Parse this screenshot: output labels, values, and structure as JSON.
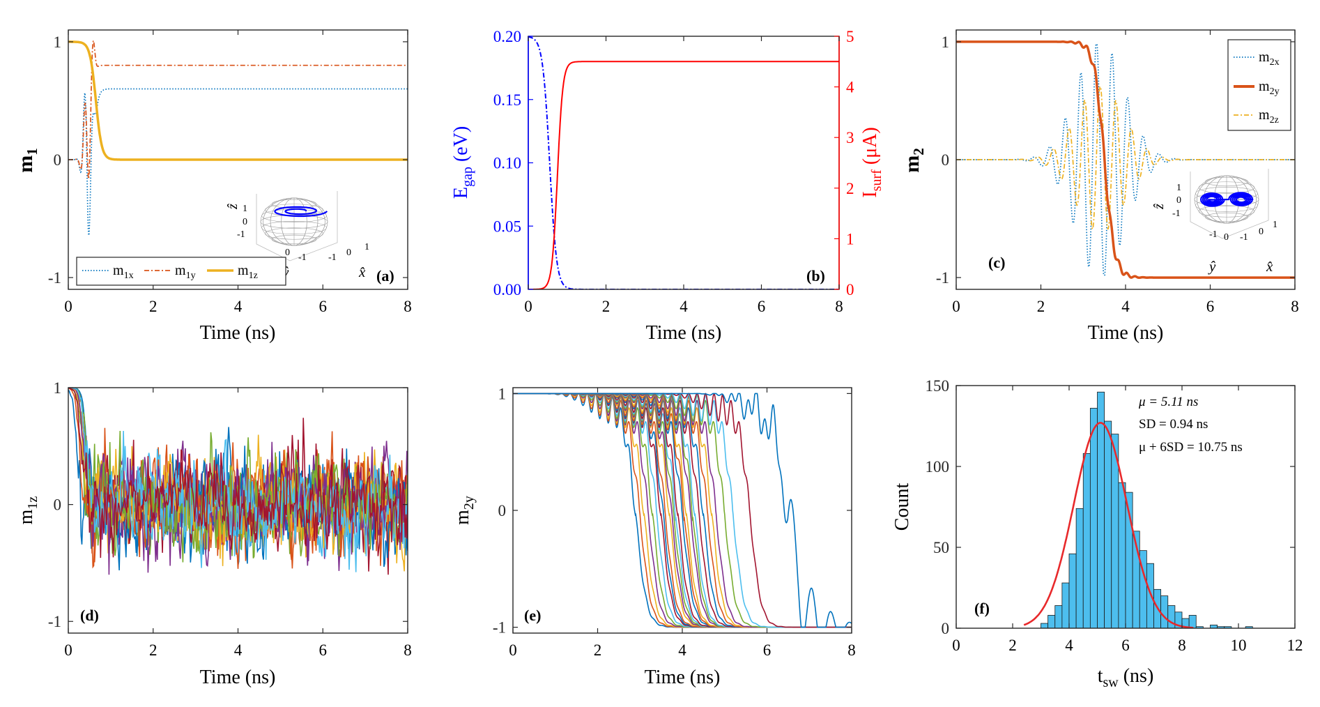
{
  "figure": {
    "colors": {
      "blue": "#0072BD",
      "orange": "#D95319",
      "yellow": "#EDB120",
      "purple": "#7E2F8E",
      "green": "#77AC30",
      "cyan": "#4DBEEE",
      "maroon": "#A2142F",
      "pure_blue": "#0000FF",
      "red": "#FF0000",
      "hist_fill": "#4DBEEE",
      "fit": "#E8292B"
    }
  },
  "chart_data": [
    {
      "panel": "a",
      "type": "line",
      "panel_label": "(a)",
      "xlabel": "Time (ns)",
      "ylabel": {
        "main": "m",
        "sub": "1"
      },
      "xlim": [
        0,
        8
      ],
      "ylim": [
        -1.1,
        1.1
      ],
      "xticks": [
        0,
        2,
        4,
        6,
        8
      ],
      "yticks": [
        -1,
        0,
        1
      ],
      "series": [
        {
          "name": "m1x",
          "legend": {
            "main": "m",
            "sub": "1x"
          },
          "style": "dotted",
          "final_value": 0.6
        },
        {
          "name": "m1y",
          "legend": {
            "main": "m",
            "sub": "1y"
          },
          "style": "dashdot",
          "final_value": 0.8
        },
        {
          "name": "m1z",
          "legend": {
            "main": "m",
            "sub": "1z"
          },
          "style": "solid",
          "final_value": 0.0
        }
      ],
      "legend_position": "bottom",
      "inset": {
        "type": "sphere-trajectory",
        "xlabel": "x̂",
        "ylabel": "ŷ",
        "zlabel": "ẑ",
        "ticks": [
          "-1",
          "0",
          "1"
        ]
      }
    },
    {
      "panel": "b",
      "type": "line",
      "panel_label": "(b)",
      "xlabel": "Time (ns)",
      "ylabel_left": {
        "main": "E",
        "sub": "gap",
        "tail": " (eV)"
      },
      "ylabel_right": {
        "main": "I",
        "sub": "surf",
        "tail": " (μA)"
      },
      "xlim": [
        0,
        8
      ],
      "ylim_left": [
        0,
        0.2
      ],
      "ylim_right": [
        0,
        5
      ],
      "xticks": [
        0,
        2,
        4,
        6,
        8
      ],
      "yticks_left": [
        "0.00",
        "0.05",
        "0.10",
        "0.15",
        "0.20"
      ],
      "yticks_right": [
        "0",
        "1",
        "2",
        "3",
        "4",
        "5"
      ],
      "series": [
        {
          "name": "E_gap (eV)",
          "axis": "left",
          "style": "dashdot",
          "initial_value": 0.2,
          "final_value": 0.0,
          "transition_ns": 0.55
        },
        {
          "name": "I_surf (μA)",
          "axis": "right",
          "style": "solid",
          "initial_value": 0.0,
          "final_value": 4.5,
          "transition_ns": 0.75
        }
      ]
    },
    {
      "panel": "c",
      "type": "line",
      "panel_label": "(c)",
      "xlabel": "Time (ns)",
      "ylabel": {
        "main": "m",
        "sub": "2"
      },
      "xlim": [
        0,
        8
      ],
      "ylim": [
        -1.1,
        1.1
      ],
      "xticks": [
        0,
        2,
        4,
        6,
        8
      ],
      "yticks": [
        -1,
        0,
        1
      ],
      "series": [
        {
          "name": "m2x",
          "legend": {
            "main": "m",
            "sub": "2x"
          },
          "style": "dotted"
        },
        {
          "name": "m2y",
          "legend": {
            "main": "m",
            "sub": "2y"
          },
          "style": "solid",
          "switch_time_ns": 3.5
        },
        {
          "name": "m2z",
          "legend": {
            "main": "m",
            "sub": "2z"
          },
          "style": "dashdot"
        }
      ],
      "legend_position": "top-right",
      "inset": {
        "type": "sphere-trajectory",
        "xlabel": "x̂",
        "ylabel": "ŷ",
        "zlabel": "ẑ",
        "ticks": [
          "-1",
          "0",
          "1"
        ]
      }
    },
    {
      "panel": "d",
      "type": "line",
      "panel_label": "(d)",
      "xlabel": "Time (ns)",
      "ylabel": {
        "main": "m",
        "sub": "1z"
      },
      "xlim": [
        0,
        8
      ],
      "ylim": [
        -1.1,
        1.0
      ],
      "xticks": [
        0,
        2,
        4,
        6,
        8
      ],
      "yticks": [
        -1,
        0,
        1
      ],
      "description_series": "ensemble of stochastic trajectories relaxing from 1 to fluctuate around 0 after ~0.4 ns",
      "n_traces": 14,
      "mean_after_relax": 0.0,
      "fluctuation_amplitude": 0.45
    },
    {
      "panel": "e",
      "type": "line",
      "panel_label": "(e)",
      "xlabel": "Time (ns)",
      "ylabel": {
        "main": "m",
        "sub": "2y"
      },
      "xlim": [
        0,
        8
      ],
      "ylim": [
        -1.05,
        1.05
      ],
      "xticks": [
        0,
        2,
        4,
        6,
        8
      ],
      "yticks": [
        -1,
        0,
        1
      ],
      "switch_times_ns": [
        2.9,
        3.0,
        3.1,
        3.2,
        3.3,
        3.4,
        3.5,
        3.55,
        3.6,
        3.7,
        3.75,
        3.8,
        3.85,
        3.9,
        4.0,
        4.05,
        4.1,
        4.2,
        4.25,
        4.3,
        4.4,
        4.5,
        4.6,
        4.7,
        4.8,
        5.0,
        5.2,
        5.6,
        6.5
      ]
    },
    {
      "panel": "f",
      "type": "bar",
      "panel_label": "(f)",
      "xlabel": {
        "main": "t",
        "sub": "sw",
        "tail": " (ns)"
      },
      "ylabel": "Count",
      "xlim": [
        0,
        12
      ],
      "ylim": [
        0,
        150
      ],
      "xticks": [
        0,
        2,
        4,
        6,
        8,
        10,
        12
      ],
      "yticks": [
        0,
        50,
        100,
        150
      ],
      "bin_width": 0.25,
      "bin_edges_start": 3.0,
      "counts": [
        3,
        8,
        14,
        28,
        46,
        74,
        108,
        136,
        146,
        128,
        120,
        90,
        84,
        60,
        48,
        40,
        24,
        20,
        14,
        10,
        6,
        8,
        1,
        0,
        2,
        1,
        1,
        0,
        0,
        1
      ],
      "fit": {
        "type": "gaussian",
        "mu": 5.11,
        "sd": 0.94,
        "peak": 127
      },
      "annotations": [
        "μ = 5.11 ns",
        "SD = 0.94 ns",
        "μ + 6SD = 10.75 ns"
      ]
    }
  ]
}
